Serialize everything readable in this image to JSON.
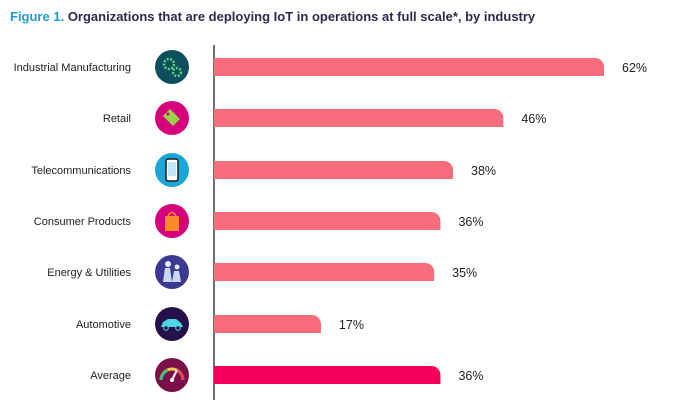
{
  "figure_label": "Figure 1.",
  "figure_title": "Organizations that are deploying IoT in operations at full scale*, by industry",
  "chart_data": {
    "type": "bar",
    "orientation": "horizontal",
    "title": "Organizations that are deploying IoT in operations at full scale*, by industry",
    "categories": [
      "Industrial Manufacturing",
      "Retail",
      "Telecommunications",
      "Consumer Products",
      "Energy & Utilities",
      "Automotive",
      "Average"
    ],
    "values": [
      62,
      46,
      38,
      36,
      35,
      17,
      36
    ],
    "value_labels": [
      "62%",
      "46%",
      "38%",
      "36%",
      "35%",
      "17%",
      "36%"
    ],
    "icons": [
      "gears-icon",
      "price-tag-icon",
      "mobile-phone-icon",
      "shopping-bag-icon",
      "power-plant-icon",
      "car-icon",
      "gauge-icon"
    ],
    "unit": "%",
    "xlim": [
      0,
      62
    ],
    "grid": false,
    "colors": {
      "bar": "#f86c7b",
      "average_bar": "#f3005a",
      "icon_colors": [
        "#0e4f5e",
        "#d6007a",
        "#1aa7d8",
        "#d6007a",
        "#3b3a91",
        "#26124a",
        "#7a0f49"
      ]
    }
  }
}
